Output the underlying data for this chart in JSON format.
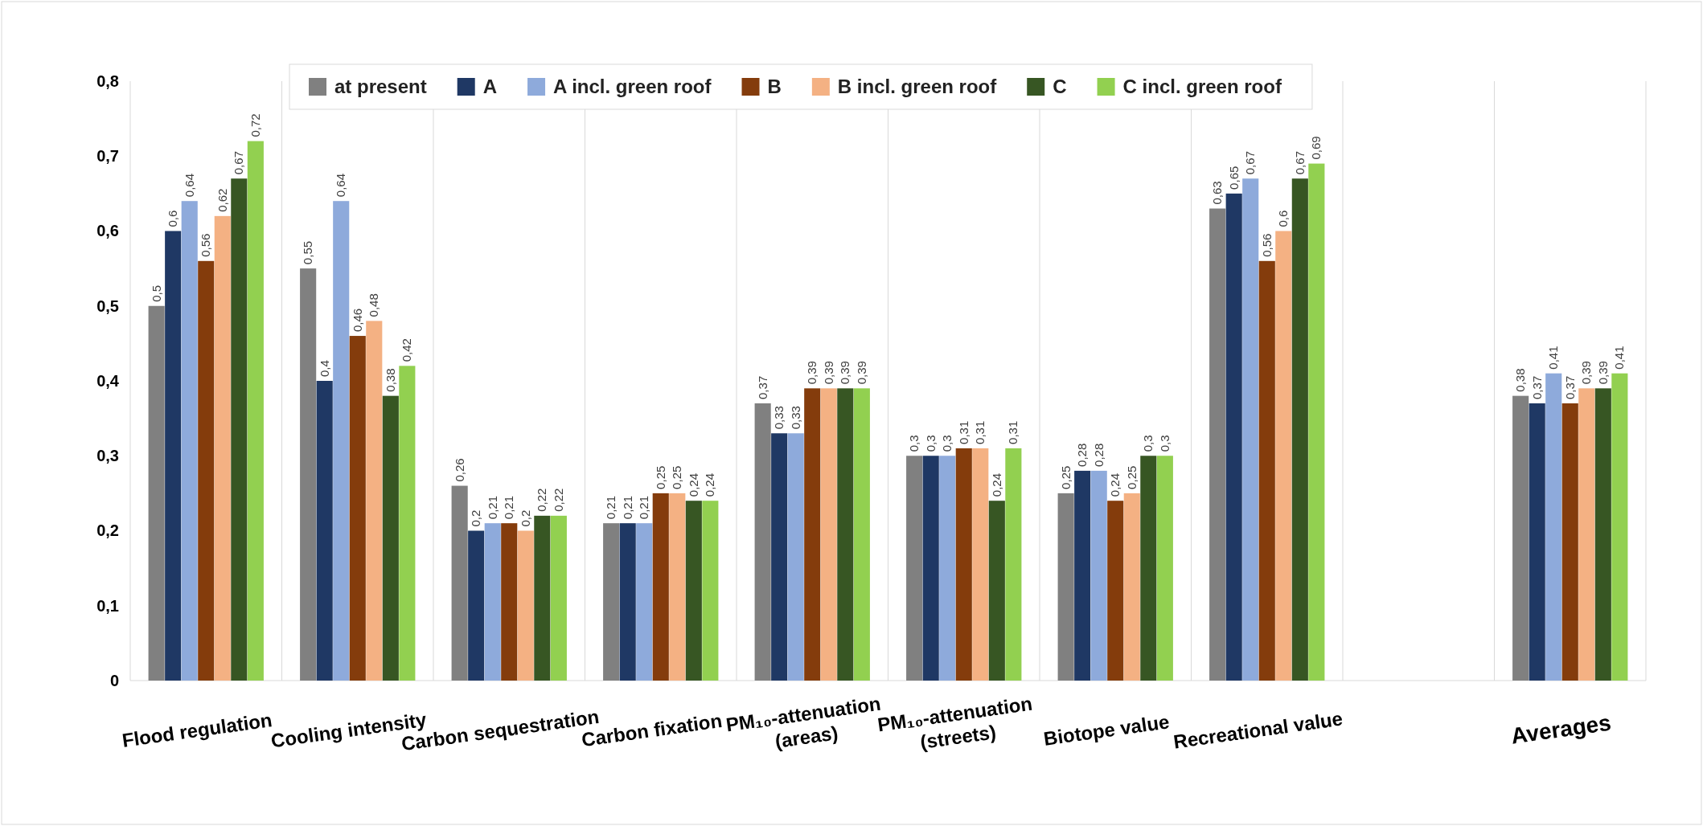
{
  "chart_data": {
    "type": "bar",
    "categories": [
      "Flood regulation",
      "Cooling intensity",
      "Carbon sequestration",
      "Carbon fixation",
      "PM₁₀-attenuation (areas)",
      "PM₁₀-attenuation (streets)",
      "Biotope value",
      "Recreational value",
      null,
      "Averages"
    ],
    "series": [
      {
        "name": "at present",
        "color": "#808080",
        "values": [
          0.5,
          0.55,
          0.26,
          0.21,
          0.37,
          0.3,
          0.25,
          0.63,
          null,
          0.38
        ],
        "value_labels": [
          "0,5",
          "0,55",
          "0,26",
          "0,21",
          "0,37",
          "0,3",
          "0,25",
          "0,63",
          null,
          "0,38"
        ]
      },
      {
        "name": "A",
        "color": "#1f3864",
        "values": [
          0.6,
          0.4,
          0.2,
          0.21,
          0.33,
          0.3,
          0.28,
          0.65,
          null,
          0.37
        ],
        "value_labels": [
          "0,6",
          "0,4",
          "0,2",
          "0,21",
          "0,33",
          "0,3",
          "0,28",
          "0,65",
          null,
          "0,37"
        ]
      },
      {
        "name": "A incl. green roof",
        "color": "#8eaadb",
        "values": [
          0.64,
          0.64,
          0.21,
          0.21,
          0.33,
          0.3,
          0.28,
          0.67,
          null,
          0.41
        ],
        "value_labels": [
          "0,64",
          "0,64",
          "0,21",
          "0,21",
          "0,33",
          "0,3",
          "0,28",
          "0,67",
          null,
          "0,41"
        ]
      },
      {
        "name": "B",
        "color": "#843c0c",
        "values": [
          0.56,
          0.46,
          0.21,
          0.25,
          0.39,
          0.31,
          0.24,
          0.56,
          null,
          0.37
        ],
        "value_labels": [
          "0,56",
          "0,46",
          "0,21",
          "0,25",
          "0,39",
          "0,31",
          "0,24",
          "0,56",
          null,
          "0,37"
        ]
      },
      {
        "name": "B incl. green roof",
        "color": "#f4b183",
        "values": [
          0.62,
          0.48,
          0.2,
          0.25,
          0.39,
          0.31,
          0.25,
          0.6,
          null,
          0.39
        ],
        "value_labels": [
          "0,62",
          "0,48",
          "0,2",
          "0,25",
          "0,39",
          "0,31",
          "0,25",
          "0,6",
          null,
          "0,39"
        ]
      },
      {
        "name": "C",
        "color": "#375623",
        "values": [
          0.67,
          0.38,
          0.22,
          0.24,
          0.39,
          0.24,
          0.3,
          0.67,
          null,
          0.39
        ],
        "value_labels": [
          "0,67",
          "0,38",
          "0,22",
          "0,24",
          "0,39",
          "0,24",
          "0,3",
          "0,67",
          null,
          "0,39"
        ]
      },
      {
        "name": "C incl. green roof",
        "color": "#92d050",
        "values": [
          0.72,
          0.42,
          0.22,
          0.24,
          0.39,
          0.31,
          0.3,
          0.69,
          null,
          0.41
        ],
        "value_labels": [
          "0,72",
          "0,42",
          "0,22",
          "0,24",
          "0,39",
          "0,31",
          "0,3",
          "0,69",
          null,
          "0,41"
        ]
      }
    ],
    "ylim": [
      0,
      0.8
    ],
    "yticks": [
      0,
      {
        "value": 0.1,
        "label": "0,1"
      },
      {
        "value": 0.2,
        "label": "0,2"
      },
      {
        "value": 0.3,
        "label": "0,3"
      },
      {
        "value": 0.4,
        "label": "0,4"
      },
      {
        "value": 0.5,
        "label": "0,5"
      },
      {
        "value": 0.6,
        "label": "0,6"
      },
      {
        "value": 0.7,
        "label": "0,7"
      },
      {
        "value": 0.8,
        "label": "0,8"
      }
    ],
    "grid": "x",
    "legend": "top"
  }
}
